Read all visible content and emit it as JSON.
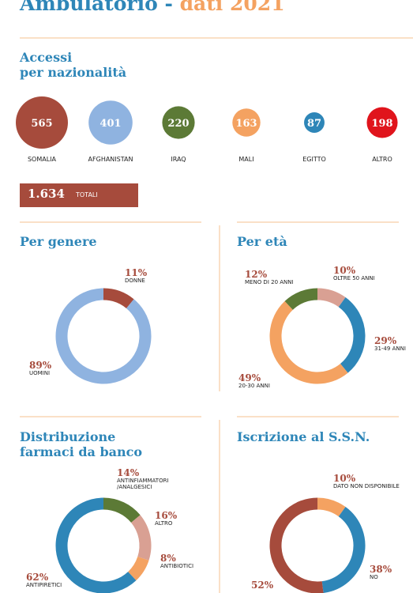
{
  "header": {
    "title": "Ambulatorio -",
    "title_accent": "dati 2021"
  },
  "chart_data": [
    {
      "type": "bubble",
      "title": "Accessi\nper nazionalità",
      "categories": [
        "SOMALIA",
        "AFGHANISTAN",
        "IRAQ",
        "MALI",
        "EGITTO",
        "ALTRO"
      ],
      "values": [
        565,
        401,
        220,
        163,
        87,
        198
      ],
      "colors": [
        "#a64b3c",
        "#8fb3e0",
        "#5c7a36",
        "#f4a261",
        "#2e86b8",
        "#e0141c"
      ],
      "total": 1634,
      "total_label": "1.634",
      "total_text": "TOTALI"
    },
    {
      "type": "donut",
      "title": "Per genere",
      "categories": [
        "DONNE",
        "UOMINI"
      ],
      "values": [
        11,
        89
      ],
      "value_labels": [
        "11%",
        "89%"
      ],
      "colors": [
        "#a64b3c",
        "#8fb3e0"
      ]
    },
    {
      "type": "donut",
      "title": "Per età",
      "categories": [
        "OLTRE 50 ANNI",
        "31-49 ANNI",
        "20-30 ANNI",
        "MENO DI 20 ANNI"
      ],
      "values": [
        10,
        29,
        49,
        12
      ],
      "value_labels": [
        "10%",
        "29%",
        "49%",
        "12%"
      ],
      "colors": [
        "#d9a093",
        "#2e86b8",
        "#f4a261",
        "#5c7a36"
      ]
    },
    {
      "type": "donut",
      "title": "Distribuzione\nfarmaci da banco",
      "categories": [
        "ANTINFIAMMATORI\n/ANALGESICI",
        "ALTRO",
        "ANTIBIOTICI",
        "ANTIPIRETICI"
      ],
      "values": [
        14,
        16,
        8,
        62
      ],
      "value_labels": [
        "14%",
        "16%",
        "8%",
        "62%"
      ],
      "colors": [
        "#5c7a36",
        "#d9a093",
        "#f4a261",
        "#2e86b8"
      ]
    },
    {
      "type": "donut",
      "title": "Iscrizione al S.S.N.",
      "categories": [
        "DATO NON DISPONIBILE",
        "NO",
        null
      ],
      "values": [
        10,
        38,
        52
      ],
      "value_labels": [
        "10%",
        "38%",
        "52%"
      ],
      "colors": [
        "#f4a261",
        "#2e86b8",
        "#a64b3c"
      ]
    }
  ]
}
